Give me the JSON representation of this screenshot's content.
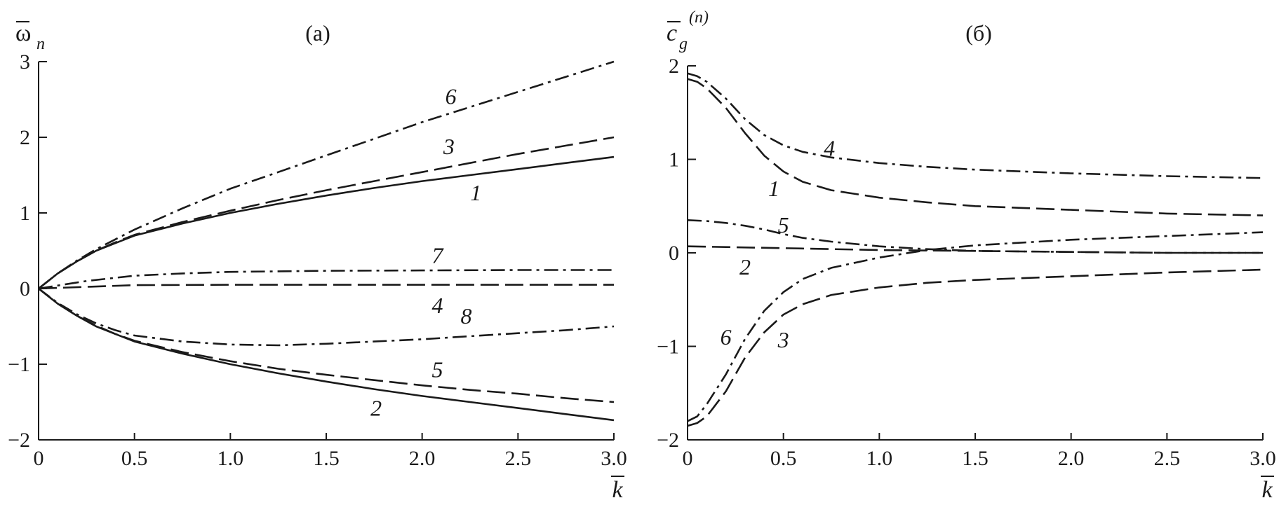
{
  "chart_data": [
    {
      "type": "line",
      "panel_label": "(a)",
      "ylabel": "ω",
      "ylabel_sub": "n",
      "xlabel": "k",
      "xlim": [
        0,
        3
      ],
      "ylim": [
        -2,
        3
      ],
      "x_ticks": [
        0,
        0.5,
        1.0,
        1.5,
        2.0,
        2.5,
        3.0
      ],
      "x_tick_labels": [
        "0",
        "0.5",
        "1.0",
        "1.5",
        "2.0",
        "2.5",
        "3.0"
      ],
      "y_ticks": [
        -2,
        -1,
        0,
        1,
        2,
        3
      ],
      "y_tick_labels": [
        "−2",
        "−1",
        "0",
        "1",
        "2",
        "3"
      ],
      "grid": false,
      "series": [
        {
          "name": "1",
          "style": "solid",
          "x": [
            0,
            0.1,
            0.2,
            0.3,
            0.4,
            0.5,
            0.75,
            1.0,
            1.25,
            1.5,
            1.75,
            2.0,
            2.25,
            2.5,
            2.75,
            3.0
          ],
          "y": [
            0,
            0.2,
            0.36,
            0.5,
            0.6,
            0.7,
            0.86,
            1.0,
            1.12,
            1.23,
            1.33,
            1.42,
            1.5,
            1.58,
            1.66,
            1.74
          ]
        },
        {
          "name": "2",
          "style": "solid",
          "x": [
            0,
            0.1,
            0.2,
            0.3,
            0.4,
            0.5,
            0.75,
            1.0,
            1.25,
            1.5,
            1.75,
            2.0,
            2.25,
            2.5,
            2.75,
            3.0
          ],
          "y": [
            0,
            -0.2,
            -0.36,
            -0.5,
            -0.6,
            -0.7,
            -0.86,
            -1.0,
            -1.12,
            -1.23,
            -1.33,
            -1.42,
            -1.5,
            -1.58,
            -1.66,
            -1.74
          ]
        },
        {
          "name": "3",
          "style": "dashed",
          "x": [
            0,
            0.1,
            0.2,
            0.3,
            0.4,
            0.5,
            0.75,
            1.0,
            1.25,
            1.5,
            1.75,
            2.0,
            2.25,
            2.5,
            2.75,
            3.0
          ],
          "y": [
            0,
            0.2,
            0.36,
            0.5,
            0.61,
            0.71,
            0.88,
            1.03,
            1.17,
            1.3,
            1.42,
            1.54,
            1.66,
            1.78,
            1.89,
            2.0
          ]
        },
        {
          "name": "4",
          "style": "dashed",
          "x": [
            0,
            0.5,
            1.0,
            1.5,
            2.0,
            2.5,
            3.0
          ],
          "y": [
            0,
            0.045,
            0.05,
            0.05,
            0.05,
            0.05,
            0.05
          ]
        },
        {
          "name": "5",
          "style": "dashed",
          "x": [
            0,
            0.1,
            0.2,
            0.3,
            0.4,
            0.5,
            0.75,
            1.0,
            1.25,
            1.5,
            1.75,
            2.0,
            2.25,
            2.5,
            2.75,
            3.0
          ],
          "y": [
            0,
            -0.2,
            -0.36,
            -0.49,
            -0.6,
            -0.69,
            -0.84,
            -0.96,
            -1.06,
            -1.14,
            -1.21,
            -1.28,
            -1.34,
            -1.39,
            -1.45,
            -1.5
          ]
        },
        {
          "name": "6",
          "style": "dashdot",
          "x": [
            0,
            0.1,
            0.2,
            0.3,
            0.4,
            0.5,
            0.75,
            1.0,
            1.25,
            1.5,
            1.75,
            2.0,
            2.25,
            2.5,
            2.75,
            3.0
          ],
          "y": [
            0,
            0.2,
            0.37,
            0.52,
            0.65,
            0.78,
            1.06,
            1.32,
            1.54,
            1.76,
            1.98,
            2.2,
            2.4,
            2.6,
            2.8,
            3.0
          ]
        },
        {
          "name": "7",
          "style": "dashdot",
          "x": [
            0,
            0.25,
            0.5,
            0.75,
            1.0,
            1.5,
            2.0,
            2.5,
            3.0
          ],
          "y": [
            0,
            0.1,
            0.17,
            0.2,
            0.22,
            0.235,
            0.24,
            0.245,
            0.245
          ]
        },
        {
          "name": "8",
          "style": "dashdot",
          "x": [
            0,
            0.1,
            0.2,
            0.3,
            0.4,
            0.5,
            0.75,
            1.0,
            1.25,
            1.5,
            1.75,
            2.0,
            2.25,
            2.5,
            2.75,
            3.0
          ],
          "y": [
            0,
            -0.19,
            -0.34,
            -0.46,
            -0.55,
            -0.62,
            -0.7,
            -0.74,
            -0.75,
            -0.73,
            -0.7,
            -0.67,
            -0.63,
            -0.59,
            -0.55,
            -0.5
          ]
        }
      ]
    },
    {
      "type": "line",
      "panel_label": "(б)",
      "ylabel": "c",
      "ylabel_sub": "g",
      "ylabel_sup": "(n)",
      "xlabel": "k",
      "xlim": [
        0,
        3
      ],
      "ylim": [
        -2,
        2
      ],
      "x_ticks": [
        0,
        0.5,
        1.0,
        1.5,
        2.0,
        2.5,
        3.0
      ],
      "x_tick_labels": [
        "0",
        "0.5",
        "1.0",
        "1.5",
        "2.0",
        "2.5",
        "3.0"
      ],
      "y_ticks": [
        -2,
        -1,
        0,
        1,
        2
      ],
      "y_tick_labels": [
        "−2",
        "−1",
        "0",
        "1",
        "2"
      ],
      "grid": false,
      "series": [
        {
          "name": "1",
          "style": "dashed",
          "x": [
            0,
            0.05,
            0.1,
            0.2,
            0.3,
            0.4,
            0.5,
            0.6,
            0.75,
            1.0,
            1.25,
            1.5,
            2.0,
            2.5,
            3.0
          ],
          "y": [
            1.86,
            1.83,
            1.76,
            1.55,
            1.28,
            1.04,
            0.87,
            0.76,
            0.67,
            0.59,
            0.54,
            0.5,
            0.46,
            0.42,
            0.4
          ]
        },
        {
          "name": "2",
          "style": "dashed",
          "x": [
            0,
            0.5,
            1.0,
            1.5,
            2.0,
            2.5,
            3.0
          ],
          "y": [
            0.07,
            0.05,
            0.03,
            0.02,
            0.01,
            0.0,
            0.0
          ]
        },
        {
          "name": "3",
          "style": "dashed",
          "x": [
            0,
            0.05,
            0.1,
            0.2,
            0.3,
            0.4,
            0.5,
            0.6,
            0.75,
            1.0,
            1.25,
            1.5,
            2.0,
            2.5,
            3.0
          ],
          "y": [
            -1.85,
            -1.82,
            -1.75,
            -1.48,
            -1.12,
            -0.85,
            -0.66,
            -0.55,
            -0.45,
            -0.37,
            -0.32,
            -0.29,
            -0.25,
            -0.21,
            -0.18
          ]
        },
        {
          "name": "4",
          "style": "dashdot",
          "x": [
            0,
            0.05,
            0.1,
            0.2,
            0.3,
            0.4,
            0.5,
            0.6,
            0.75,
            1.0,
            1.25,
            1.5,
            2.0,
            2.5,
            3.0
          ],
          "y": [
            1.92,
            1.89,
            1.83,
            1.65,
            1.43,
            1.26,
            1.15,
            1.08,
            1.02,
            0.96,
            0.92,
            0.89,
            0.85,
            0.82,
            0.8
          ]
        },
        {
          "name": "5",
          "style": "dashdot",
          "x": [
            0,
            0.1,
            0.2,
            0.3,
            0.4,
            0.5,
            0.6,
            0.75,
            1.0,
            1.25,
            1.5,
            2.0,
            2.5,
            3.0
          ],
          "y": [
            0.35,
            0.34,
            0.32,
            0.29,
            0.25,
            0.2,
            0.16,
            0.12,
            0.07,
            0.04,
            0.02,
            0.01,
            0.0,
            0.0
          ]
        },
        {
          "name": "6",
          "style": "dashdot",
          "x": [
            0,
            0.05,
            0.1,
            0.2,
            0.3,
            0.4,
            0.5,
            0.6,
            0.75,
            1.0,
            1.25,
            1.5,
            2.0,
            2.5,
            3.0
          ],
          "y": [
            -1.8,
            -1.75,
            -1.62,
            -1.3,
            -0.92,
            -0.62,
            -0.42,
            -0.28,
            -0.16,
            -0.05,
            0.03,
            0.08,
            0.14,
            0.18,
            0.22
          ]
        }
      ]
    }
  ]
}
